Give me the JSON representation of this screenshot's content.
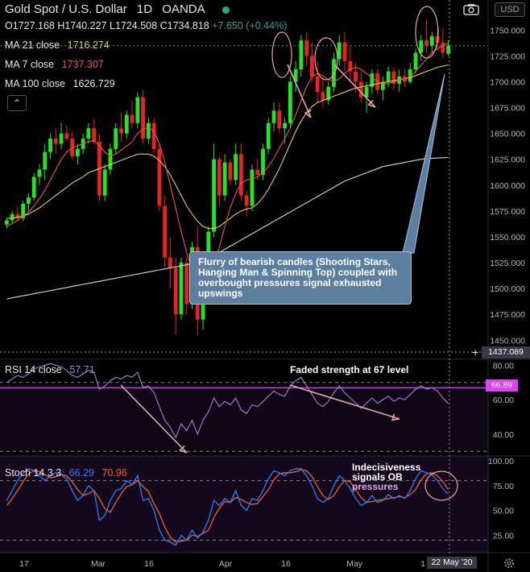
{
  "header": {
    "title": "Gold Spot / U.S. Dollar",
    "interval": "1D",
    "source": "OANDA",
    "currency": "USD",
    "open": "O1727.168",
    "high": "H1740.227",
    "low": "L1724.508",
    "close": "C1734.818",
    "change": "+7.650 (+0.44%)"
  },
  "indicators": {
    "ma21": {
      "label": "MA 21 close",
      "value": "1716.274",
      "color": "#e8d13a"
    },
    "ma7": {
      "label": "MA 7 close",
      "value": "1737.307",
      "color": "#ef5350"
    },
    "ma100": {
      "label": "MA 100 close",
      "value": "1626.729",
      "color": "#d9d9d9"
    },
    "rsi": {
      "label": "RSI 14 close",
      "value": "57.71",
      "color": "#a97fd6"
    },
    "stoch": {
      "label": "Stoch 14 3 3",
      "k": "66.29",
      "d": "70.96",
      "k_color": "#2f7df6",
      "d_color": "#f0602d"
    }
  },
  "annotations": {
    "callout": "Flurry of bearish candles (Shooting Stars, Hanging Man & Spinning Top) coupled with overbought pressures signal exhausted upswings",
    "rsi_note": "Faded strength at 67 level",
    "stoch_note_1": "Indecisiveness",
    "stoch_note_2": "signals OB",
    "stoch_note_3": "pressures"
  },
  "axis": {
    "price_ticks": [
      "1750.000",
      "1725.000",
      "1700.000",
      "1675.000",
      "1650.000",
      "1625.000",
      "1600.000",
      "1575.000",
      "1550.000",
      "1525.000",
      "1500.000",
      "1475.000",
      "1450.000"
    ],
    "price_values": [
      1750,
      1725,
      1700,
      1675,
      1650,
      1625,
      1600,
      1575,
      1550,
      1525,
      1500,
      1475,
      1450
    ],
    "crosshair_price": "1437.089",
    "rsi_ticks": [
      "80.00",
      "60.00",
      "40.00"
    ],
    "rsi_values": [
      80,
      60,
      40
    ],
    "rsi_marker": "66.89",
    "stoch_ticks": [
      "100.00",
      "75.00",
      "50.00",
      "25.00"
    ],
    "stoch_values": [
      100,
      75,
      50,
      25
    ],
    "x_ticks": [
      "17",
      "Mar",
      "16",
      "Apr",
      "16",
      "May",
      "1"
    ],
    "crosshair_date": "22 May '20"
  },
  "chart_data": {
    "type": "candlestick",
    "title": "Gold Spot / U.S. Dollar",
    "candles": [
      [
        1562,
        1568,
        1558,
        1566
      ],
      [
        1566,
        1575,
        1562,
        1572
      ],
      [
        1572,
        1580,
        1566,
        1568
      ],
      [
        1568,
        1585,
        1565,
        1582
      ],
      [
        1582,
        1592,
        1575,
        1588
      ],
      [
        1588,
        1612,
        1585,
        1608
      ],
      [
        1608,
        1620,
        1600,
        1615
      ],
      [
        1615,
        1640,
        1605,
        1632
      ],
      [
        1632,
        1650,
        1625,
        1645
      ],
      [
        1645,
        1655,
        1630,
        1640
      ],
      [
        1640,
        1660,
        1635,
        1650
      ],
      [
        1650,
        1658,
        1642,
        1645
      ],
      [
        1645,
        1652,
        1625,
        1628
      ],
      [
        1628,
        1640,
        1620,
        1635
      ],
      [
        1635,
        1650,
        1630,
        1645
      ],
      [
        1645,
        1660,
        1640,
        1655
      ],
      [
        1655,
        1664,
        1640,
        1642
      ],
      [
        1642,
        1650,
        1585,
        1590
      ],
      [
        1590,
        1620,
        1585,
        1615
      ],
      [
        1615,
        1640,
        1610,
        1635
      ],
      [
        1635,
        1660,
        1630,
        1655
      ],
      [
        1655,
        1670,
        1642,
        1650
      ],
      [
        1650,
        1672,
        1645,
        1668
      ],
      [
        1668,
        1682,
        1655,
        1660
      ],
      [
        1660,
        1690,
        1655,
        1685
      ],
      [
        1685,
        1692,
        1640,
        1645
      ],
      [
        1645,
        1665,
        1640,
        1660
      ],
      [
        1660,
        1665,
        1630,
        1635
      ],
      [
        1635,
        1640,
        1575,
        1580
      ],
      [
        1580,
        1590,
        1520,
        1530
      ],
      [
        1530,
        1550,
        1500,
        1520
      ],
      [
        1520,
        1530,
        1455,
        1475
      ],
      [
        1475,
        1530,
        1470,
        1525
      ],
      [
        1525,
        1530,
        1475,
        1485
      ],
      [
        1485,
        1545,
        1480,
        1540
      ],
      [
        1540,
        1560,
        1455,
        1470
      ],
      [
        1470,
        1530,
        1460,
        1525
      ],
      [
        1525,
        1560,
        1520,
        1555
      ],
      [
        1555,
        1640,
        1550,
        1625
      ],
      [
        1625,
        1628,
        1580,
        1590
      ],
      [
        1590,
        1630,
        1585,
        1622
      ],
      [
        1622,
        1625,
        1600,
        1605
      ],
      [
        1605,
        1640,
        1600,
        1630
      ],
      [
        1630,
        1640,
        1585,
        1590
      ],
      [
        1590,
        1595,
        1570,
        1580
      ],
      [
        1580,
        1620,
        1575,
        1615
      ],
      [
        1615,
        1625,
        1605,
        1610
      ],
      [
        1610,
        1640,
        1605,
        1635
      ],
      [
        1635,
        1665,
        1630,
        1660
      ],
      [
        1660,
        1680,
        1652,
        1672
      ],
      [
        1672,
        1680,
        1650,
        1655
      ],
      [
        1655,
        1665,
        1640,
        1660
      ],
      [
        1660,
        1705,
        1655,
        1700
      ],
      [
        1700,
        1720,
        1690,
        1712
      ],
      [
        1712,
        1745,
        1705,
        1740
      ],
      [
        1740,
        1748,
        1715,
        1725
      ],
      [
        1725,
        1738,
        1700,
        1705
      ],
      [
        1705,
        1720,
        1680,
        1690
      ],
      [
        1690,
        1705,
        1675,
        1682
      ],
      [
        1682,
        1700,
        1678,
        1695
      ],
      [
        1695,
        1728,
        1690,
        1722
      ],
      [
        1722,
        1745,
        1715,
        1738
      ],
      [
        1738,
        1748,
        1710,
        1720
      ],
      [
        1720,
        1735,
        1700,
        1710
      ],
      [
        1710,
        1718,
        1690,
        1700
      ],
      [
        1700,
        1710,
        1680,
        1685
      ],
      [
        1685,
        1700,
        1670,
        1695
      ],
      [
        1695,
        1712,
        1688,
        1708
      ],
      [
        1708,
        1712,
        1688,
        1692
      ],
      [
        1692,
        1705,
        1682,
        1700
      ],
      [
        1700,
        1715,
        1695,
        1710
      ],
      [
        1710,
        1714,
        1692,
        1698
      ],
      [
        1698,
        1712,
        1690,
        1705
      ],
      [
        1705,
        1712,
        1695,
        1700
      ],
      [
        1700,
        1718,
        1698,
        1712
      ],
      [
        1712,
        1732,
        1708,
        1728
      ],
      [
        1728,
        1745,
        1720,
        1740
      ],
      [
        1740,
        1760,
        1728,
        1735
      ],
      [
        1735,
        1748,
        1728,
        1744
      ],
      [
        1744,
        1752,
        1730,
        1738
      ],
      [
        1738,
        1752,
        1722,
        1728
      ],
      [
        1727.168,
        1740.227,
        1724.508,
        1734.818
      ]
    ],
    "ma7": [
      1560,
      1563,
      1566,
      1570,
      1574,
      1580,
      1587,
      1595,
      1605,
      1615,
      1625,
      1632,
      1636,
      1638,
      1640,
      1642,
      1643,
      1638,
      1632,
      1628,
      1630,
      1634,
      1638,
      1642,
      1650,
      1654,
      1656,
      1652,
      1640,
      1622,
      1600,
      1578,
      1555,
      1535,
      1518,
      1505,
      1500,
      1505,
      1520,
      1540,
      1560,
      1578,
      1592,
      1602,
      1605,
      1606,
      1608,
      1612,
      1618,
      1626,
      1636,
      1645,
      1655,
      1668,
      1682,
      1695,
      1705,
      1708,
      1706,
      1702,
      1700,
      1703,
      1708,
      1712,
      1714,
      1712,
      1708,
      1704,
      1700,
      1698,
      1698,
      1700,
      1702,
      1703,
      1705,
      1710,
      1716,
      1722,
      1728,
      1732,
      1735,
      1737.307
    ],
    "ma21": [
      1568,
      1568,
      1569,
      1570,
      1572,
      1575,
      1578,
      1582,
      1586,
      1590,
      1594,
      1598,
      1602,
      1605,
      1608,
      1612,
      1614,
      1616,
      1618,
      1620,
      1622,
      1624,
      1626,
      1628,
      1630,
      1630,
      1630,
      1628,
      1624,
      1618,
      1610,
      1600,
      1590,
      1580,
      1572,
      1565,
      1560,
      1558,
      1558,
      1560,
      1564,
      1568,
      1572,
      1575,
      1577,
      1578,
      1582,
      1588,
      1596,
      1606,
      1616,
      1628,
      1640,
      1652,
      1662,
      1670,
      1676,
      1680,
      1682,
      1684,
      1686,
      1688,
      1690,
      1692,
      1694,
      1695,
      1696,
      1697,
      1698,
      1699,
      1700,
      1701,
      1702,
      1703,
      1704,
      1706,
      1708,
      1710,
      1712,
      1714,
      1715,
      1716.274
    ],
    "ma100": [
      1490,
      1491,
      1492,
      1493,
      1494,
      1495,
      1496,
      1497,
      1498,
      1499,
      1500,
      1501,
      1502,
      1503,
      1504,
      1505,
      1506,
      1507,
      1508,
      1509,
      1510,
      1511,
      1512,
      1513,
      1514,
      1515,
      1516,
      1517,
      1518,
      1519,
      1520,
      1521,
      1522,
      1523,
      1524,
      1526,
      1528,
      1530,
      1532,
      1535,
      1538,
      1541,
      1544,
      1547,
      1550,
      1553,
      1556,
      1559,
      1562,
      1565,
      1568,
      1571,
      1574,
      1577,
      1580,
      1583,
      1586,
      1589,
      1592,
      1595,
      1598,
      1601,
      1604,
      1606,
      1608,
      1610,
      1612,
      1614,
      1616,
      1618,
      1619,
      1620,
      1621,
      1622,
      1623,
      1624,
      1625,
      1625.5,
      1626,
      1626.3,
      1626.5,
      1626.729
    ],
    "rsi": [
      70,
      72,
      74,
      73,
      75,
      78,
      79,
      80,
      81,
      80,
      79,
      77,
      74,
      73,
      75,
      77,
      76,
      66,
      68,
      71,
      73,
      72,
      74,
      73,
      76,
      67,
      68,
      64,
      56,
      48,
      44,
      38,
      46,
      42,
      48,
      40,
      48,
      53,
      61,
      56,
      59,
      57,
      61,
      54,
      52,
      57,
      56,
      59,
      62,
      65,
      63,
      62,
      68,
      71,
      73,
      68,
      63,
      58,
      56,
      59,
      64,
      68,
      64,
      61,
      58,
      55,
      58,
      61,
      58,
      60,
      62,
      59,
      61,
      60,
      63,
      66,
      68,
      66,
      67,
      65,
      61,
      57.71
    ],
    "stoch_k": [
      60,
      70,
      80,
      88,
      92,
      90,
      85,
      80,
      85,
      88,
      86,
      82,
      70,
      60,
      65,
      75,
      70,
      40,
      45,
      60,
      70,
      72,
      80,
      76,
      85,
      60,
      62,
      50,
      30,
      20,
      18,
      15,
      25,
      20,
      30,
      22,
      28,
      40,
      60,
      55,
      62,
      58,
      70,
      55,
      50,
      62,
      60,
      70,
      82,
      90,
      88,
      85,
      90,
      92,
      92,
      85,
      75,
      62,
      58,
      62,
      75,
      85,
      80,
      72,
      62,
      55,
      58,
      65,
      58,
      60,
      66,
      62,
      65,
      62,
      70,
      82,
      90,
      88,
      86,
      80,
      72,
      66.29
    ],
    "stoch_d": [
      55,
      62,
      70,
      79,
      87,
      90,
      89,
      86,
      83,
      84,
      86,
      85,
      79,
      71,
      65,
      67,
      70,
      62,
      52,
      48,
      58,
      67,
      74,
      76,
      80,
      74,
      69,
      57,
      47,
      33,
      23,
      18,
      19,
      20,
      25,
      24,
      27,
      30,
      43,
      52,
      59,
      58,
      63,
      61,
      58,
      56,
      57,
      64,
      71,
      81,
      87,
      88,
      88,
      89,
      91,
      90,
      84,
      74,
      65,
      61,
      65,
      74,
      80,
      79,
      71,
      63,
      58,
      59,
      60,
      61,
      62,
      63,
      64,
      63,
      66,
      71,
      81,
      87,
      88,
      85,
      79,
      70.96
    ]
  }
}
